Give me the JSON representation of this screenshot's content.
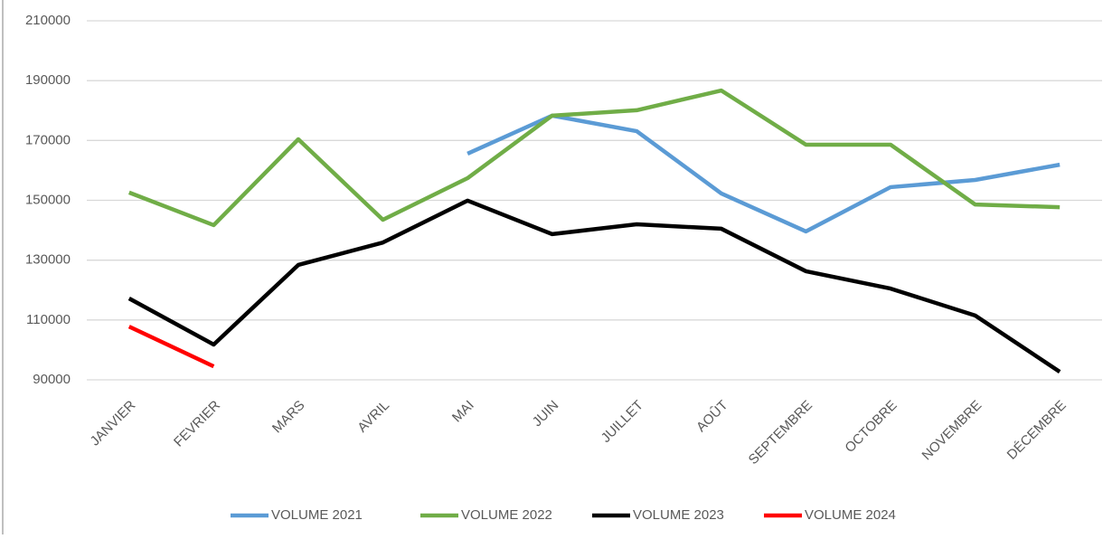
{
  "chart_data": {
    "type": "line",
    "categories": [
      "JANVIER",
      "FEVRIER",
      "MARS",
      "AVRIL",
      "MAI",
      "JUIN",
      "JUILLET",
      "AOÛT",
      "SEPTEMBRE",
      "OCTOBRE",
      "NOVEMBRE",
      "DÉCEMBRE"
    ],
    "series": [
      {
        "name": "VOLUME 2021",
        "color": "#5b9bd5",
        "values": [
          null,
          null,
          null,
          null,
          165600,
          178300,
          173100,
          152300,
          139600,
          154400,
          156800,
          161900
        ]
      },
      {
        "name": "VOLUME 2022",
        "color": "#70ad47",
        "values": [
          152600,
          141700,
          170400,
          143500,
          157400,
          178300,
          180100,
          186700,
          168600,
          168600,
          148600,
          147700
        ]
      },
      {
        "name": "VOLUME 2023",
        "color": "#000000",
        "values": [
          117200,
          101800,
          128400,
          135900,
          149900,
          138700,
          142000,
          140500,
          126300,
          120500,
          111500,
          92700
        ]
      },
      {
        "name": "VOLUME 2024",
        "color": "#ff0000",
        "values": [
          107800,
          94500,
          null,
          null,
          null,
          null,
          null,
          null,
          null,
          null,
          null,
          null
        ]
      }
    ],
    "ylim": [
      90000,
      210000
    ],
    "yticks": [
      90000,
      110000,
      130000,
      150000,
      170000,
      190000,
      210000
    ],
    "grid": true,
    "legend": "bottom"
  }
}
